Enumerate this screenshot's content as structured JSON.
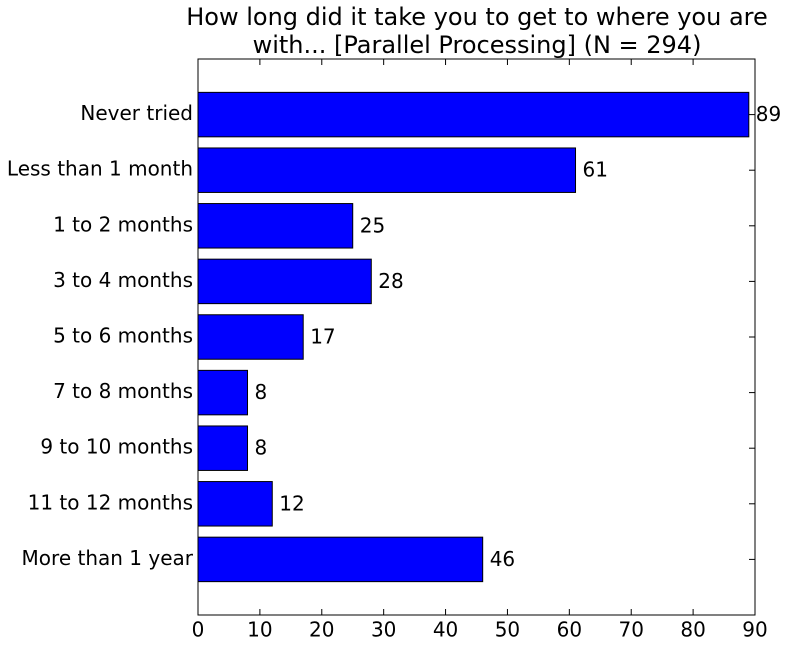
{
  "chart_data": {
    "type": "barh",
    "title": [
      "How long did it take you to get to where you are",
      "with... [Parallel Processing] (N = 294)"
    ],
    "categories": [
      "Never tried",
      "Less than 1 month",
      "1 to 2 months",
      "3 to 4 months",
      "5 to 6 months",
      "7 to 8 months",
      "9 to 10 months",
      "11 to 12 months",
      "More than 1 year"
    ],
    "values": [
      89,
      61,
      25,
      28,
      17,
      8,
      8,
      12,
      46
    ],
    "color": "#0000ff",
    "xlim": [
      0,
      90
    ],
    "xticks": [
      0,
      10,
      20,
      30,
      40,
      50,
      60,
      70,
      80,
      90
    ]
  }
}
